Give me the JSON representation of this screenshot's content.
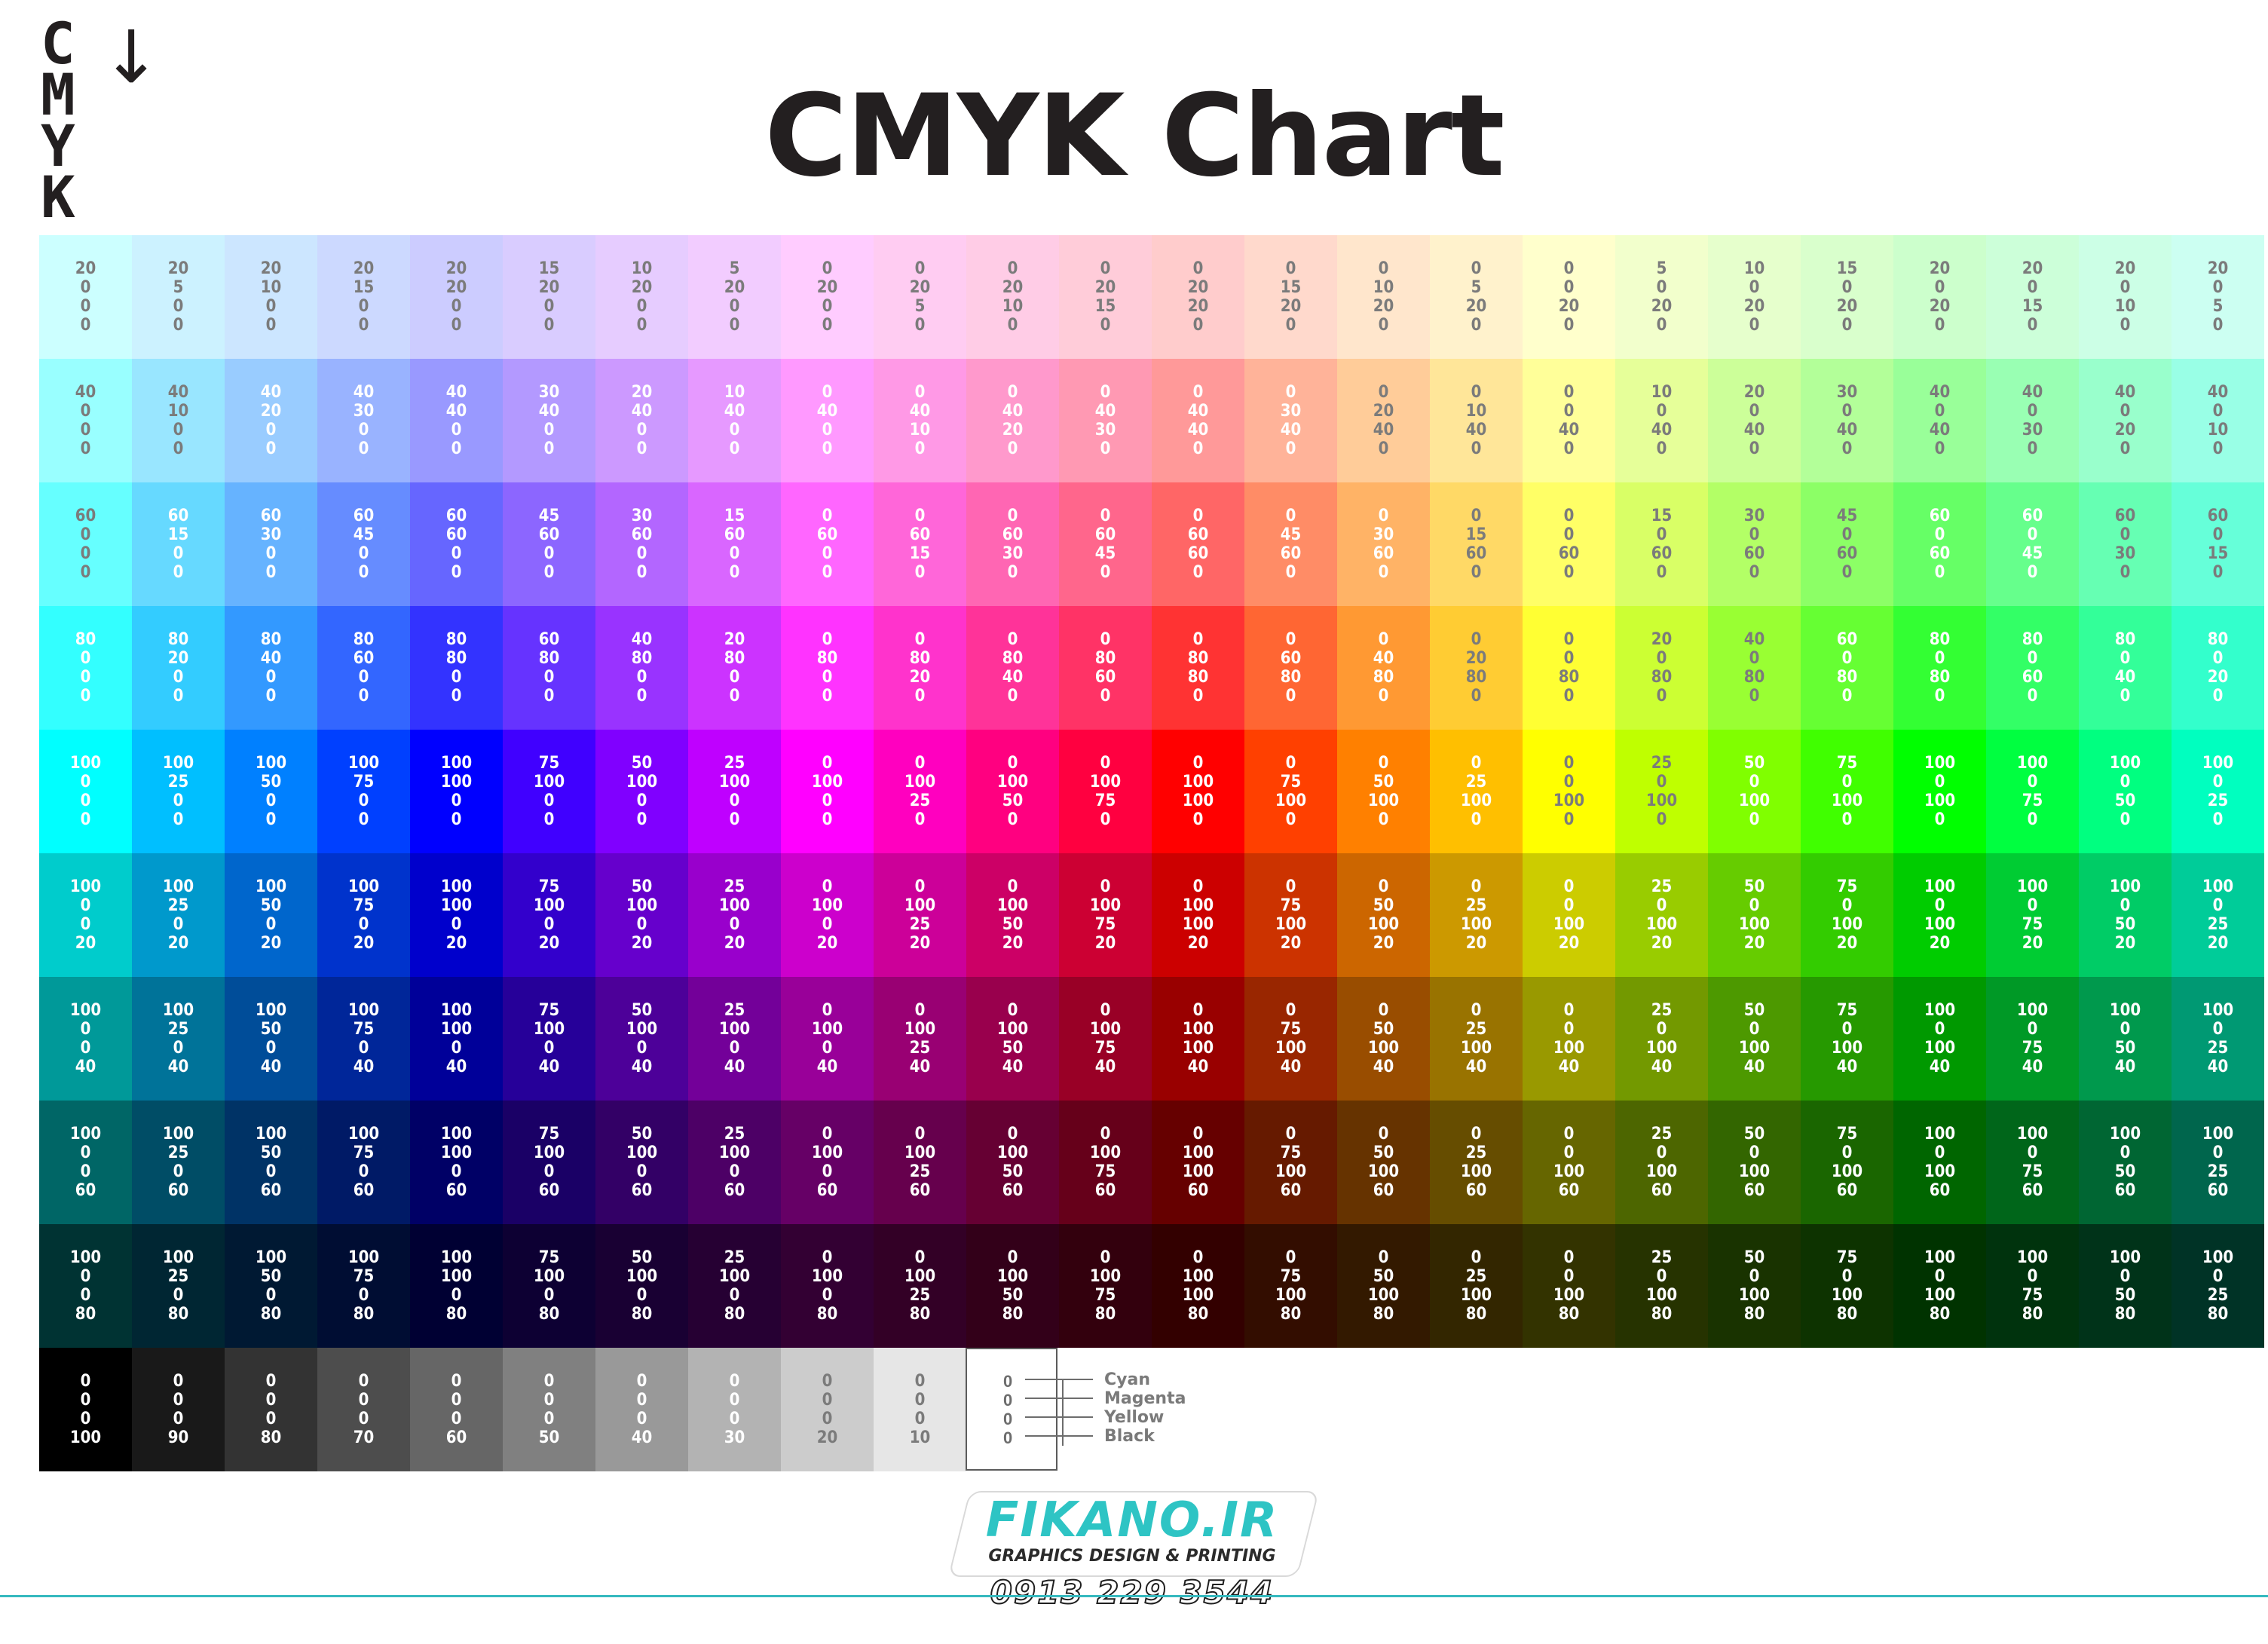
{
  "title": "CMYK Chart",
  "logo_letters": [
    "C",
    "M",
    "Y",
    "K"
  ],
  "rows": [
    {
      "k": 0,
      "max": 20,
      "cells": [
        [
          20,
          0,
          0
        ],
        [
          20,
          5,
          0
        ],
        [
          20,
          10,
          0
        ],
        [
          20,
          15,
          0
        ],
        [
          20,
          20,
          0
        ],
        [
          15,
          20,
          0
        ],
        [
          10,
          20,
          0
        ],
        [
          5,
          20,
          0
        ],
        [
          0,
          20,
          0
        ],
        [
          0,
          20,
          5
        ],
        [
          0,
          20,
          10
        ],
        [
          0,
          20,
          15
        ],
        [
          0,
          20,
          20
        ],
        [
          0,
          15,
          20
        ],
        [
          0,
          10,
          20
        ],
        [
          0,
          5,
          20
        ],
        [
          0,
          0,
          20
        ],
        [
          5,
          0,
          20
        ],
        [
          10,
          0,
          20
        ],
        [
          15,
          0,
          20
        ],
        [
          20,
          0,
          20
        ],
        [
          20,
          0,
          15
        ],
        [
          20,
          0,
          10
        ],
        [
          20,
          0,
          5
        ]
      ]
    },
    {
      "k": 0,
      "max": 40,
      "cells": [
        [
          40,
          0,
          0
        ],
        [
          40,
          10,
          0
        ],
        [
          40,
          20,
          0
        ],
        [
          40,
          30,
          0
        ],
        [
          40,
          40,
          0
        ],
        [
          30,
          40,
          0
        ],
        [
          20,
          40,
          0
        ],
        [
          10,
          40,
          0
        ],
        [
          0,
          40,
          0
        ],
        [
          0,
          40,
          10
        ],
        [
          0,
          40,
          20
        ],
        [
          0,
          40,
          30
        ],
        [
          0,
          40,
          40
        ],
        [
          0,
          30,
          40
        ],
        [
          0,
          20,
          40
        ],
        [
          0,
          10,
          40
        ],
        [
          0,
          0,
          40
        ],
        [
          10,
          0,
          40
        ],
        [
          20,
          0,
          40
        ],
        [
          30,
          0,
          40
        ],
        [
          40,
          0,
          40
        ],
        [
          40,
          0,
          30
        ],
        [
          40,
          0,
          20
        ],
        [
          40,
          0,
          10
        ]
      ]
    },
    {
      "k": 0,
      "max": 60,
      "cells": [
        [
          60,
          0,
          0
        ],
        [
          60,
          15,
          0
        ],
        [
          60,
          30,
          0
        ],
        [
          60,
          45,
          0
        ],
        [
          60,
          60,
          0
        ],
        [
          45,
          60,
          0
        ],
        [
          30,
          60,
          0
        ],
        [
          15,
          60,
          0
        ],
        [
          0,
          60,
          0
        ],
        [
          0,
          60,
          15
        ],
        [
          0,
          60,
          30
        ],
        [
          0,
          60,
          45
        ],
        [
          0,
          60,
          60
        ],
        [
          0,
          45,
          60
        ],
        [
          0,
          30,
          60
        ],
        [
          0,
          15,
          60
        ],
        [
          0,
          0,
          60
        ],
        [
          15,
          0,
          60
        ],
        [
          30,
          0,
          60
        ],
        [
          45,
          0,
          60
        ],
        [
          60,
          0,
          60
        ],
        [
          60,
          0,
          45
        ],
        [
          60,
          0,
          30
        ],
        [
          60,
          0,
          15
        ]
      ]
    },
    {
      "k": 0,
      "max": 80,
      "cells": [
        [
          80,
          0,
          0
        ],
        [
          80,
          20,
          0
        ],
        [
          80,
          40,
          0
        ],
        [
          80,
          60,
          0
        ],
        [
          80,
          80,
          0
        ],
        [
          60,
          80,
          0
        ],
        [
          40,
          80,
          0
        ],
        [
          20,
          80,
          0
        ],
        [
          0,
          80,
          0
        ],
        [
          0,
          80,
          20
        ],
        [
          0,
          80,
          40
        ],
        [
          0,
          80,
          60
        ],
        [
          0,
          80,
          80
        ],
        [
          0,
          60,
          80
        ],
        [
          0,
          40,
          80
        ],
        [
          0,
          20,
          80
        ],
        [
          0,
          0,
          80
        ],
        [
          20,
          0,
          80
        ],
        [
          40,
          0,
          80
        ],
        [
          60,
          0,
          80
        ],
        [
          80,
          0,
          80
        ],
        [
          80,
          0,
          60
        ],
        [
          80,
          0,
          40
        ],
        [
          80,
          0,
          20
        ]
      ]
    },
    {
      "k": 0,
      "max": 100,
      "cells": [
        [
          100,
          0,
          0
        ],
        [
          100,
          25,
          0
        ],
        [
          100,
          50,
          0
        ],
        [
          100,
          75,
          0
        ],
        [
          100,
          100,
          0
        ],
        [
          75,
          100,
          0
        ],
        [
          50,
          100,
          0
        ],
        [
          25,
          100,
          0
        ],
        [
          0,
          100,
          0
        ],
        [
          0,
          100,
          25
        ],
        [
          0,
          100,
          50
        ],
        [
          0,
          100,
          75
        ],
        [
          0,
          100,
          100
        ],
        [
          0,
          75,
          100
        ],
        [
          0,
          50,
          100
        ],
        [
          0,
          25,
          100
        ],
        [
          0,
          0,
          100
        ],
        [
          25,
          0,
          100
        ],
        [
          50,
          0,
          100
        ],
        [
          75,
          0,
          100
        ],
        [
          100,
          0,
          100
        ],
        [
          100,
          0,
          75
        ],
        [
          100,
          0,
          50
        ],
        [
          100,
          0,
          25
        ]
      ]
    },
    {
      "k": 20,
      "max": 100,
      "cells": [
        [
          100,
          0,
          0
        ],
        [
          100,
          25,
          0
        ],
        [
          100,
          50,
          0
        ],
        [
          100,
          75,
          0
        ],
        [
          100,
          100,
          0
        ],
        [
          75,
          100,
          0
        ],
        [
          50,
          100,
          0
        ],
        [
          25,
          100,
          0
        ],
        [
          0,
          100,
          0
        ],
        [
          0,
          100,
          25
        ],
        [
          0,
          100,
          50
        ],
        [
          0,
          100,
          75
        ],
        [
          0,
          100,
          100
        ],
        [
          0,
          75,
          100
        ],
        [
          0,
          50,
          100
        ],
        [
          0,
          25,
          100
        ],
        [
          0,
          0,
          100
        ],
        [
          25,
          0,
          100
        ],
        [
          50,
          0,
          100
        ],
        [
          75,
          0,
          100
        ],
        [
          100,
          0,
          100
        ],
        [
          100,
          0,
          75
        ],
        [
          100,
          0,
          50
        ],
        [
          100,
          0,
          25
        ]
      ]
    },
    {
      "k": 40,
      "max": 100,
      "cells": [
        [
          100,
          0,
          0
        ],
        [
          100,
          25,
          0
        ],
        [
          100,
          50,
          0
        ],
        [
          100,
          75,
          0
        ],
        [
          100,
          100,
          0
        ],
        [
          75,
          100,
          0
        ],
        [
          50,
          100,
          0
        ],
        [
          25,
          100,
          0
        ],
        [
          0,
          100,
          0
        ],
        [
          0,
          100,
          25
        ],
        [
          0,
          100,
          50
        ],
        [
          0,
          100,
          75
        ],
        [
          0,
          100,
          100
        ],
        [
          0,
          75,
          100
        ],
        [
          0,
          50,
          100
        ],
        [
          0,
          25,
          100
        ],
        [
          0,
          0,
          100
        ],
        [
          25,
          0,
          100
        ],
        [
          50,
          0,
          100
        ],
        [
          75,
          0,
          100
        ],
        [
          100,
          0,
          100
        ],
        [
          100,
          0,
          75
        ],
        [
          100,
          0,
          50
        ],
        [
          100,
          0,
          25
        ]
      ]
    },
    {
      "k": 60,
      "max": 100,
      "cells": [
        [
          100,
          0,
          0
        ],
        [
          100,
          25,
          0
        ],
        [
          100,
          50,
          0
        ],
        [
          100,
          75,
          0
        ],
        [
          100,
          100,
          0
        ],
        [
          75,
          100,
          0
        ],
        [
          50,
          100,
          0
        ],
        [
          25,
          100,
          0
        ],
        [
          0,
          100,
          0
        ],
        [
          0,
          100,
          25
        ],
        [
          0,
          100,
          50
        ],
        [
          0,
          100,
          75
        ],
        [
          0,
          100,
          100
        ],
        [
          0,
          75,
          100
        ],
        [
          0,
          50,
          100
        ],
        [
          0,
          25,
          100
        ],
        [
          0,
          0,
          100
        ],
        [
          25,
          0,
          100
        ],
        [
          50,
          0,
          100
        ],
        [
          75,
          0,
          100
        ],
        [
          100,
          0,
          100
        ],
        [
          100,
          0,
          75
        ],
        [
          100,
          0,
          50
        ],
        [
          100,
          0,
          25
        ]
      ]
    },
    {
      "k": 80,
      "max": 100,
      "cells": [
        [
          100,
          0,
          0
        ],
        [
          100,
          25,
          0
        ],
        [
          100,
          50,
          0
        ],
        [
          100,
          75,
          0
        ],
        [
          100,
          100,
          0
        ],
        [
          75,
          100,
          0
        ],
        [
          50,
          100,
          0
        ],
        [
          25,
          100,
          0
        ],
        [
          0,
          100,
          0
        ],
        [
          0,
          100,
          25
        ],
        [
          0,
          100,
          50
        ],
        [
          0,
          100,
          75
        ],
        [
          0,
          100,
          100
        ],
        [
          0,
          75,
          100
        ],
        [
          0,
          50,
          100
        ],
        [
          0,
          25,
          100
        ],
        [
          0,
          0,
          100
        ],
        [
          25,
          0,
          100
        ],
        [
          50,
          0,
          100
        ],
        [
          75,
          0,
          100
        ],
        [
          100,
          0,
          100
        ],
        [
          100,
          0,
          75
        ],
        [
          100,
          0,
          50
        ],
        [
          100,
          0,
          25
        ]
      ]
    }
  ],
  "gray_row": [
    100,
    90,
    80,
    70,
    60,
    50,
    40,
    30,
    20,
    10
  ],
  "legend": {
    "values": [
      "0",
      "0",
      "0",
      "0"
    ],
    "labels": [
      "Cyan",
      "Magenta",
      "Yellow",
      "Black"
    ]
  },
  "brand": {
    "name": "FIKANO.IR",
    "tagline": "GRAPHICS DESIGN & PRINTING",
    "phone": "0913 229 3544",
    "accent_color": "#2ec4c4"
  }
}
